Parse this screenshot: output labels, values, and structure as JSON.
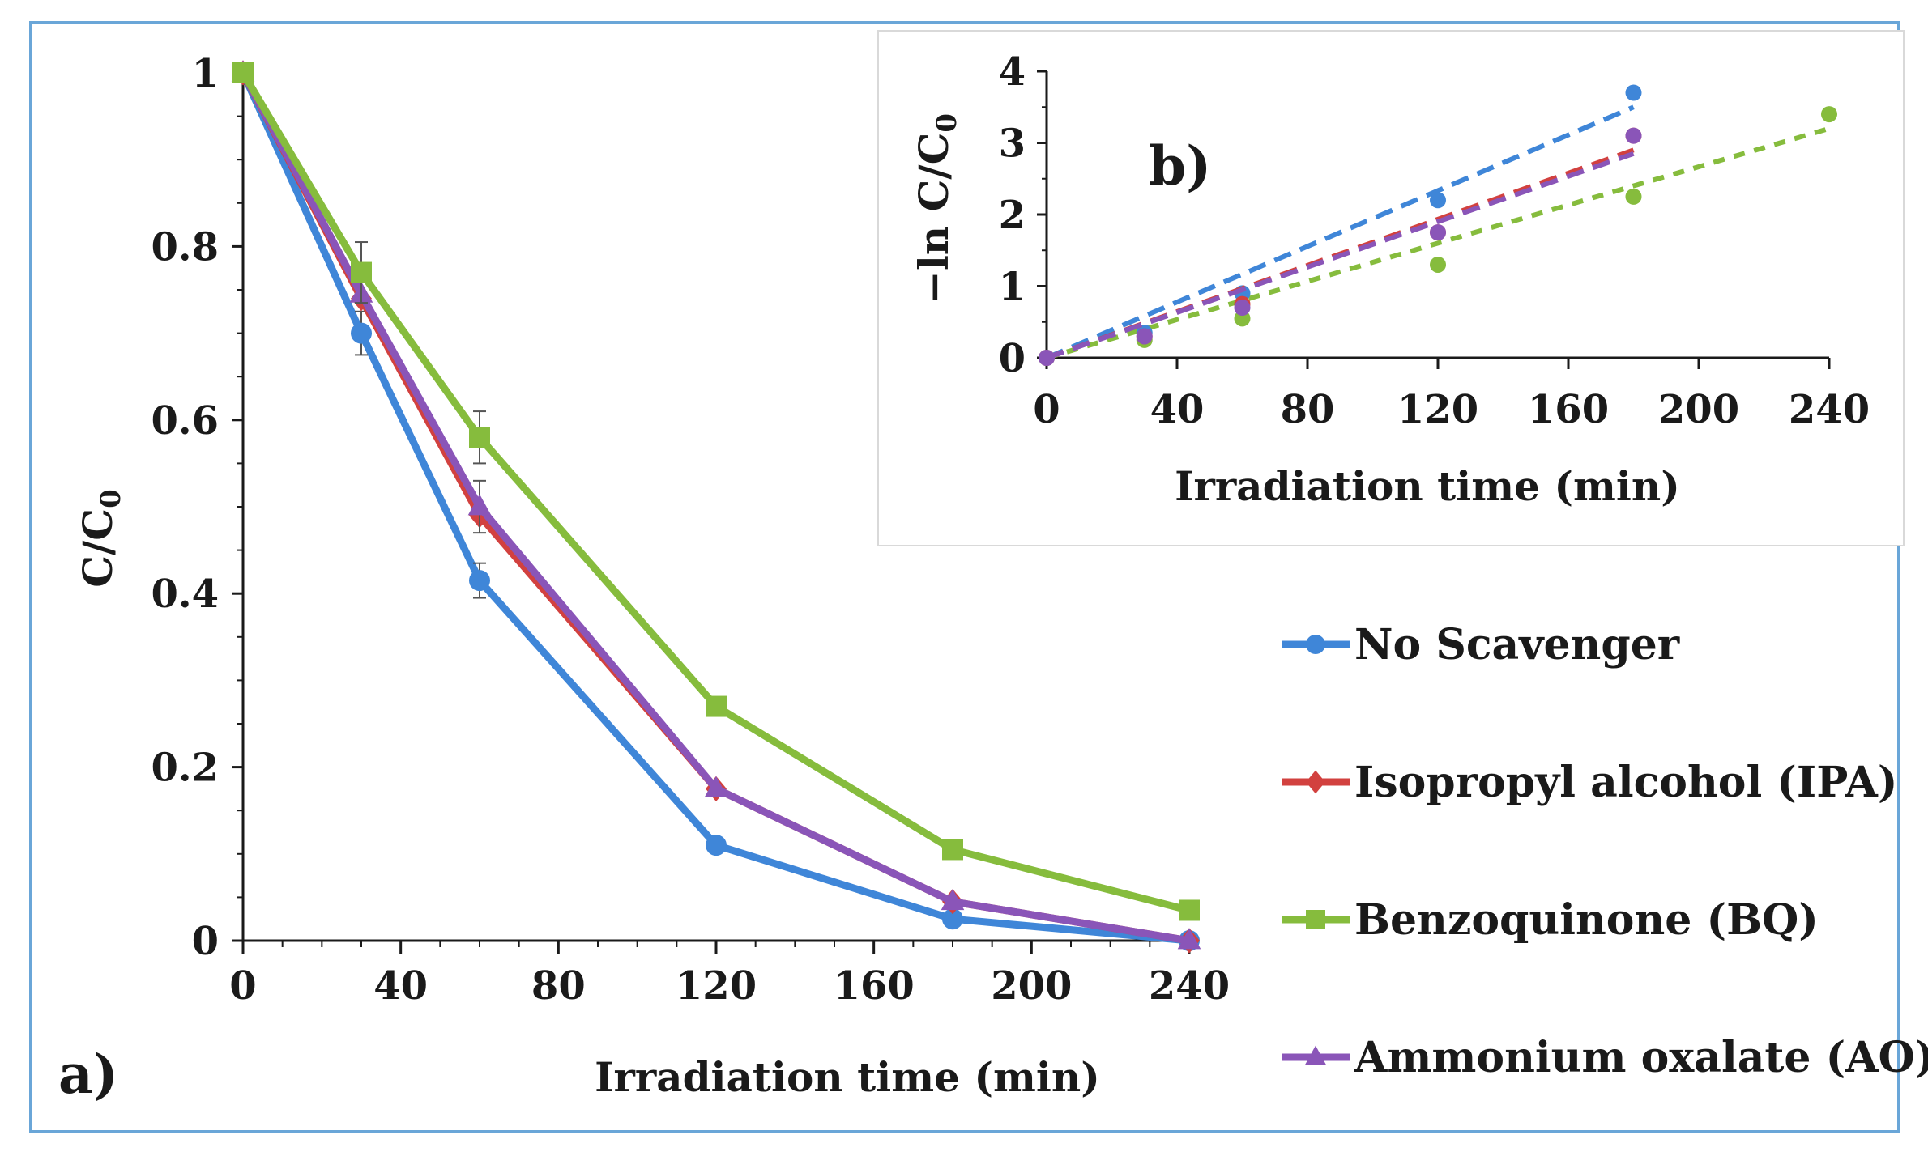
{
  "colors": {
    "frame": "#6aa6d8",
    "axis": "#1a1a1a",
    "inset_frame": "#d9d9d9"
  },
  "chart_data": [
    {
      "type": "line",
      "panel_label": "a)",
      "xlabel": "Irradiation time (min)",
      "ylabel_main": "C/C",
      "ylabel_sub": "0",
      "xlim": [
        0,
        240
      ],
      "ylim": [
        0,
        1
      ],
      "x_ticks": [
        0,
        40,
        80,
        120,
        160,
        200,
        240
      ],
      "x_tick_labels": [
        "0",
        "40",
        "80",
        "120",
        "160",
        "200",
        "240"
      ],
      "y_ticks": [
        0,
        0.2,
        0.4,
        0.6,
        0.8,
        1
      ],
      "y_tick_labels": [
        "0",
        "0.2",
        "0.4",
        "0.6",
        "0.8",
        "1"
      ],
      "x": [
        0,
        30,
        60,
        120,
        180,
        240
      ],
      "series": [
        {
          "name": "No Scavenger",
          "color": "#3f86d8",
          "marker": "circle",
          "values": [
            1.0,
            0.7,
            0.415,
            0.11,
            0.025,
            0.0
          ],
          "errors": [
            0,
            0.025,
            0.02,
            0,
            0,
            0
          ]
        },
        {
          "name": "Isopropyl alcohol (IPA)",
          "color": "#d2413f",
          "marker": "diamond",
          "values": [
            1.0,
            0.74,
            0.49,
            0.175,
            0.045,
            0.0
          ],
          "errors": [
            0,
            0,
            0,
            0,
            0,
            0
          ]
        },
        {
          "name": "Benzoquinone (BQ)",
          "color": "#86bc3d",
          "marker": "square",
          "values": [
            1.0,
            0.77,
            0.58,
            0.27,
            0.105,
            0.035
          ],
          "errors": [
            0,
            0.035,
            0.03,
            0,
            0,
            0
          ]
        },
        {
          "name": "Ammonium oxalate (AO)",
          "color": "#8a55b8",
          "marker": "triangle",
          "values": [
            1.0,
            0.745,
            0.5,
            0.175,
            0.045,
            0.0
          ],
          "errors": [
            0,
            0,
            0.03,
            0,
            0,
            0
          ]
        }
      ]
    },
    {
      "type": "scatter",
      "panel_label": "b)",
      "xlabel": "Irradiation time (min)",
      "ylabel_main": "−ln C/C",
      "ylabel_sub": "0",
      "xlim": [
        0,
        240
      ],
      "ylim": [
        0,
        4
      ],
      "x_ticks": [
        0,
        40,
        80,
        120,
        160,
        200,
        240
      ],
      "x_tick_labels": [
        "0",
        "40",
        "80",
        "120",
        "160",
        "200",
        "240"
      ],
      "y_ticks": [
        0,
        1,
        2,
        3,
        4
      ],
      "y_tick_labels": [
        "0",
        "1",
        "2",
        "3",
        "4"
      ],
      "series": [
        {
          "name": "No Scavenger",
          "color": "#3f86d8",
          "x": [
            0,
            30,
            60,
            120,
            180
          ],
          "values": [
            0,
            0.35,
            0.9,
            2.2,
            3.7
          ],
          "fit": {
            "x": [
              0,
              180
            ],
            "y": [
              0,
              3.5
            ]
          }
        },
        {
          "name": "Isopropyl alcohol (IPA)",
          "color": "#d2413f",
          "x": [
            0,
            30,
            60,
            120,
            180
          ],
          "values": [
            0,
            0.3,
            0.75,
            1.75,
            3.1
          ],
          "fit": {
            "x": [
              0,
              180
            ],
            "y": [
              0,
              2.9
            ]
          }
        },
        {
          "name": "Benzoquinone (BQ)",
          "color": "#86bc3d",
          "x": [
            0,
            30,
            60,
            120,
            180,
            240
          ],
          "values": [
            0,
            0.25,
            0.55,
            1.3,
            2.25,
            3.4
          ],
          "fit": {
            "x": [
              0,
              240
            ],
            "y": [
              0,
              3.2
            ]
          }
        },
        {
          "name": "Ammonium oxalate (AO)",
          "color": "#8a55b8",
          "x": [
            0,
            30,
            60,
            120,
            180
          ],
          "values": [
            0,
            0.3,
            0.7,
            1.75,
            3.1
          ],
          "fit": {
            "x": [
              0,
              180
            ],
            "y": [
              0,
              2.85
            ]
          }
        }
      ]
    }
  ]
}
